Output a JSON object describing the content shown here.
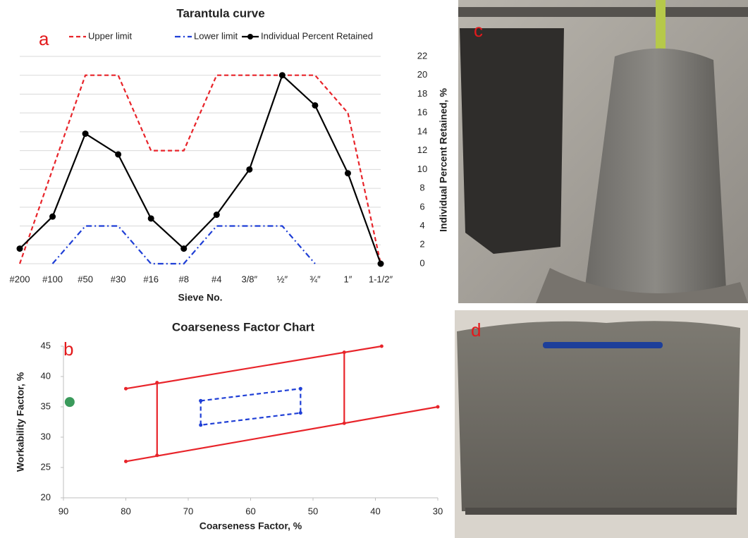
{
  "chart_data": [
    {
      "type": "line",
      "title": "Tarantula curve",
      "panel_label": "a",
      "categories": [
        "#200",
        "#100",
        "#50",
        "#30",
        "#16",
        "#8",
        "#4",
        "3/8″",
        "½″",
        "¾″",
        "1″",
        "1-1/2″"
      ],
      "series": [
        {
          "name": "Upper limit",
          "color": "#e8242a",
          "dash": "dashed",
          "values": [
            0,
            10,
            20,
            20,
            12,
            12,
            20,
            20,
            20,
            20,
            16,
            0
          ]
        },
        {
          "name": "Lower limit",
          "color": "#1f3fd6",
          "dash": "dashdot",
          "values": [
            null,
            0,
            4,
            4,
            0,
            0,
            4,
            4,
            4,
            0,
            null,
            null
          ]
        },
        {
          "name": "Individual Percent Retained",
          "color": "#000000",
          "dash": "solid",
          "marker": "circle",
          "values": [
            1.6,
            5,
            13.8,
            11.6,
            4.8,
            1.6,
            5.2,
            10,
            20,
            16.8,
            9.6,
            0
          ]
        }
      ],
      "xlabel": "Sieve No.",
      "ylabel": "Individual Percent Retained, %",
      "y_axis_side": "right",
      "ylim": [
        0,
        22
      ],
      "yticks": [
        0,
        2,
        4,
        6,
        8,
        10,
        12,
        14,
        16,
        18,
        20,
        22
      ],
      "grid": true,
      "legend": "top"
    },
    {
      "type": "line",
      "title": "Coarseness Factor Chart",
      "panel_label": "b",
      "series": [
        {
          "color": "#e8242a",
          "dash": "solid",
          "marker": "dot",
          "x": [
            80,
            39
          ],
          "values": [
            38,
            45
          ]
        },
        {
          "color": "#e8242a",
          "dash": "solid",
          "marker": "dot",
          "x": [
            80,
            30
          ],
          "values": [
            26,
            35
          ]
        },
        {
          "color": "#e8242a",
          "dash": "solid",
          "marker": "dot",
          "x": [
            75,
            75
          ],
          "values": [
            27,
            39
          ]
        },
        {
          "color": "#e8242a",
          "dash": "solid",
          "marker": "dot",
          "x": [
            45,
            45
          ],
          "values": [
            32.3,
            44
          ]
        },
        {
          "color": "#1f3fd6",
          "dash": "dashed",
          "marker": "dot",
          "x": [
            68,
            52,
            52,
            68,
            68
          ],
          "values": [
            36,
            38,
            34,
            32,
            36
          ]
        },
        {
          "color": "#3a9a5b",
          "dash": "none",
          "marker": "circle",
          "x": [
            89
          ],
          "values": [
            35.8
          ]
        }
      ],
      "xlabel": "Coarseness Factor, %",
      "ylabel": "Workability Factor, %",
      "xlim": [
        90,
        30
      ],
      "xticks": [
        90,
        80,
        70,
        60,
        50,
        40,
        30
      ],
      "ylim": [
        20,
        45
      ],
      "yticks": [
        20,
        25,
        30,
        35,
        40,
        45
      ],
      "y_axis_side": "left",
      "grid": false
    }
  ],
  "photos": [
    {
      "label": "c"
    },
    {
      "label": "d"
    }
  ]
}
